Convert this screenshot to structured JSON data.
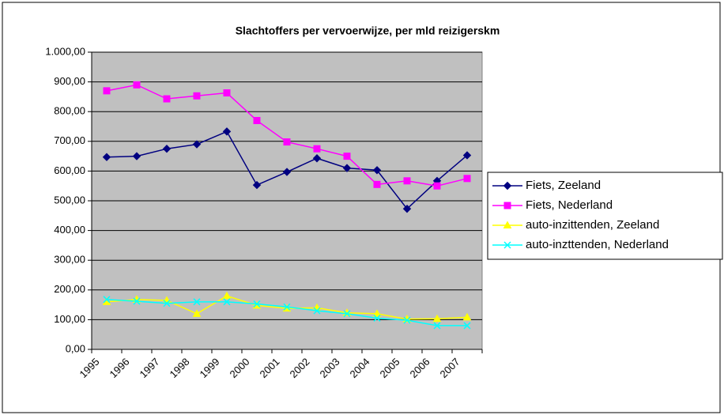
{
  "chart_data": {
    "type": "line",
    "title": "Slachtoffers per vervoerwijze, per mld reizigerskm",
    "categories": [
      "1995",
      "1996",
      "1997",
      "1998",
      "1999",
      "2000",
      "2001",
      "2002",
      "2003",
      "2004",
      "2005",
      "2006",
      "2007"
    ],
    "series": [
      {
        "name": "Fiets, Zeeland",
        "color": "#000080",
        "marker": "diamond",
        "values": [
          647,
          650,
          675,
          690,
          733,
          553,
          597,
          643,
          610,
          603,
          473,
          567,
          653
        ]
      },
      {
        "name": "Fiets, Nederland",
        "color": "#ff00ff",
        "marker": "square",
        "values": [
          870,
          890,
          843,
          853,
          863,
          770,
          698,
          675,
          650,
          555,
          567,
          550,
          575
        ]
      },
      {
        "name": "auto-inzittenden, Zeeland",
        "color": "#ffff00",
        "marker": "triangle",
        "values": [
          160,
          168,
          165,
          120,
          180,
          148,
          138,
          140,
          123,
          120,
          102,
          103,
          108
        ]
      },
      {
        "name": "auto-inzttenden, Nederland",
        "color": "#00ffff",
        "marker": "x",
        "values": [
          168,
          162,
          155,
          160,
          160,
          153,
          143,
          130,
          120,
          105,
          98,
          80,
          80
        ]
      }
    ],
    "ylim": [
      0,
      1000
    ],
    "yticks": [
      {
        "value": 0,
        "label": "0,00"
      },
      {
        "value": 100,
        "label": "100,00"
      },
      {
        "value": 200,
        "label": "200,00"
      },
      {
        "value": 300,
        "label": "300,00"
      },
      {
        "value": 400,
        "label": "400,00"
      },
      {
        "value": 500,
        "label": "500,00"
      },
      {
        "value": 600,
        "label": "600,00"
      },
      {
        "value": 700,
        "label": "700,00"
      },
      {
        "value": 800,
        "label": "800,00"
      },
      {
        "value": 900,
        "label": "900,00"
      },
      {
        "value": 1000,
        "label": "1.000,00"
      }
    ],
    "grid": true,
    "legend": "right",
    "plot_background": "#c0c0c0"
  }
}
